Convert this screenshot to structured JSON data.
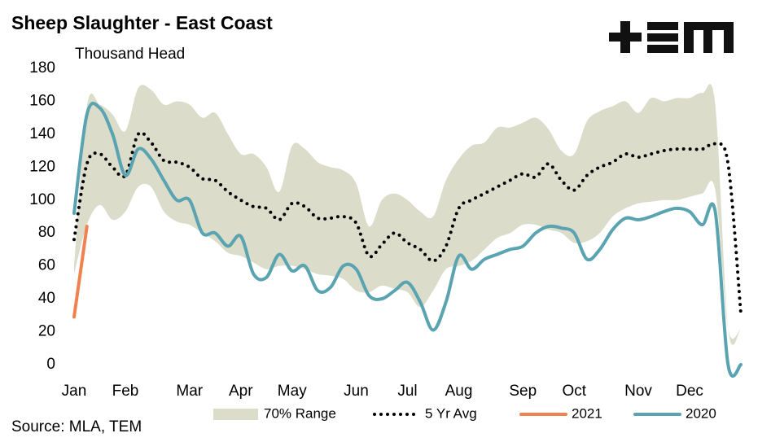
{
  "chart_data": {
    "type": "line",
    "title": "Sheep Slaughter - East Coast",
    "subtitle": "Thousand Head",
    "source": "Source: MLA, TEM",
    "categories": [
      "Jan",
      null,
      null,
      null,
      "Feb",
      null,
      null,
      null,
      null,
      "Mar",
      null,
      null,
      null,
      "Apr",
      null,
      null,
      null,
      "May",
      null,
      null,
      null,
      null,
      "Jun",
      null,
      null,
      null,
      "Jul",
      null,
      null,
      null,
      "Aug",
      null,
      null,
      null,
      null,
      "Sep",
      null,
      null,
      null,
      "Oct",
      null,
      null,
      null,
      null,
      "Nov",
      null,
      null,
      null,
      "Dec",
      null,
      null,
      null,
      null
    ],
    "ylim": [
      0,
      180
    ],
    "yticks": [
      0,
      20,
      40,
      60,
      80,
      100,
      120,
      140,
      160,
      180
    ],
    "series": [
      {
        "name": "70% Range",
        "color": "#dcdccb",
        "low": [
          55,
          85,
          97,
          88,
          93,
          108,
          108,
          93,
          87,
          85,
          80,
          75,
          68,
          66,
          62,
          58,
          60,
          60,
          58,
          55,
          54,
          52,
          45,
          44,
          48,
          46,
          44,
          35,
          45,
          58,
          60,
          63,
          70,
          77,
          80,
          85,
          85,
          82,
          80,
          74,
          75,
          80,
          90,
          95,
          98,
          99,
          100,
          100,
          102,
          104,
          106,
          22,
          22
        ],
        "high": [
          60,
          157,
          158,
          152,
          142,
          168,
          167,
          158,
          160,
          158,
          150,
          153,
          140,
          128,
          128,
          120,
          105,
          133,
          131,
          123,
          120,
          118,
          110,
          84,
          100,
          104,
          100,
          93,
          90,
          112,
          125,
          133,
          135,
          144,
          144,
          147,
          150,
          143,
          130,
          128,
          148,
          154,
          157,
          160,
          153,
          162,
          160,
          162,
          162,
          165,
          158,
          22,
          22
        ]
      },
      {
        "name": "5 Yr Avg",
        "color": "#000000",
        "style": "dotted",
        "values": [
          76,
          122,
          128,
          120,
          115,
          140,
          135,
          124,
          123,
          120,
          113,
          112,
          105,
          100,
          96,
          95,
          88,
          98,
          96,
          89,
          89,
          90,
          86,
          66,
          73,
          80,
          74,
          70,
          63,
          72,
          95,
          100,
          104,
          108,
          112,
          116,
          114,
          122,
          112,
          106,
          115,
          120,
          123,
          128,
          126,
          128,
          130,
          131,
          131,
          131,
          134,
          122,
          31
        ]
      },
      {
        "name": "2021",
        "color": "#f08150",
        "values": [
          29,
          84,
          null,
          null,
          null,
          null,
          null,
          null,
          null,
          null,
          null,
          null,
          null,
          null,
          null,
          null,
          null,
          null,
          null,
          null,
          null,
          null,
          null,
          null,
          null,
          null,
          null,
          null,
          null,
          null,
          null,
          null,
          null,
          null,
          null,
          null,
          null,
          null,
          null,
          null,
          null,
          null,
          null,
          null,
          null,
          null,
          null,
          null,
          null,
          null,
          null,
          null,
          null
        ]
      },
      {
        "name": "2020",
        "color": "#5aa3b0",
        "values": [
          92,
          152,
          156,
          140,
          115,
          131,
          125,
          112,
          100,
          100,
          80,
          80,
          72,
          78,
          55,
          53,
          67,
          57,
          60,
          45,
          47,
          60,
          58,
          42,
          40,
          45,
          50,
          38,
          21,
          38,
          66,
          58,
          64,
          67,
          70,
          72,
          80,
          84,
          83,
          80,
          64,
          70,
          82,
          89,
          88,
          90,
          93,
          95,
          93,
          85,
          93,
          0,
          0
        ]
      }
    ]
  }
}
